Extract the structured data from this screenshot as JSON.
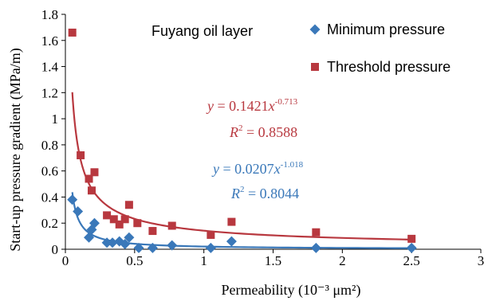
{
  "chart_data": {
    "type": "scatter",
    "title": "Fuyang oil layer",
    "xlabel": "Permeability (10⁻³ μm²)",
    "ylabel": "Start-up pressure gradient (MPa/m)",
    "xlim": [
      0,
      3
    ],
    "ylim": [
      0,
      1.8
    ],
    "xticks": [
      0,
      0.5,
      1,
      1.5,
      2,
      2.5,
      3
    ],
    "xtick_labels": [
      "0",
      "0.5",
      "1",
      "1.5",
      "2",
      "2.5",
      "3"
    ],
    "yticks": [
      0,
      0.2,
      0.4,
      0.6,
      0.8,
      1,
      1.2,
      1.4,
      1.6,
      1.8
    ],
    "ytick_labels": [
      "0",
      "0.2",
      "0.4",
      "0.6",
      "0.8",
      "1",
      "1.2",
      "1.4",
      "1.6",
      "1.8"
    ],
    "grid": false,
    "legend_position": "top-right",
    "series": [
      {
        "name": "Minimum pressure",
        "marker": "diamond",
        "color": "#3a78b9",
        "fit": {
          "a": 0.0207,
          "b": -1.018
        },
        "equation": {
          "lhs": "y",
          "eq": " = 0.0207",
          "var": "x",
          "exp": "-1.018",
          "r2_lhs": "R",
          "r2_sup": "2",
          "r2_rest": " = 0.8044"
        },
        "points": [
          [
            0.05,
            0.38
          ],
          [
            0.09,
            0.29
          ],
          [
            0.17,
            0.09
          ],
          [
            0.19,
            0.15
          ],
          [
            0.21,
            0.2
          ],
          [
            0.3,
            0.05
          ],
          [
            0.34,
            0.05
          ],
          [
            0.39,
            0.06
          ],
          [
            0.43,
            0.04
          ],
          [
            0.46,
            0.09
          ],
          [
            0.53,
            0.01
          ],
          [
            0.63,
            0.01
          ],
          [
            0.77,
            0.03
          ],
          [
            1.05,
            0.01
          ],
          [
            1.2,
            0.06
          ],
          [
            1.81,
            0.01
          ],
          [
            2.5,
            0.01
          ]
        ]
      },
      {
        "name": "Threshold pressure",
        "marker": "square",
        "color": "#b8383f",
        "fit": {
          "a": 0.1421,
          "b": -0.713
        },
        "equation": {
          "lhs": "y",
          "eq": " = 0.1421",
          "var": "x",
          "exp": "-0.713",
          "r2_lhs": "R",
          "r2_sup": "2",
          "r2_rest": " = 0.8588"
        },
        "points": [
          [
            0.05,
            1.66
          ],
          [
            0.11,
            0.72
          ],
          [
            0.17,
            0.54
          ],
          [
            0.19,
            0.45
          ],
          [
            0.21,
            0.59
          ],
          [
            0.3,
            0.26
          ],
          [
            0.35,
            0.23
          ],
          [
            0.39,
            0.19
          ],
          [
            0.43,
            0.23
          ],
          [
            0.46,
            0.34
          ],
          [
            0.52,
            0.2
          ],
          [
            0.63,
            0.14
          ],
          [
            0.77,
            0.18
          ],
          [
            1.05,
            0.11
          ],
          [
            1.2,
            0.21
          ],
          [
            1.81,
            0.13
          ],
          [
            2.5,
            0.08
          ]
        ]
      }
    ]
  }
}
